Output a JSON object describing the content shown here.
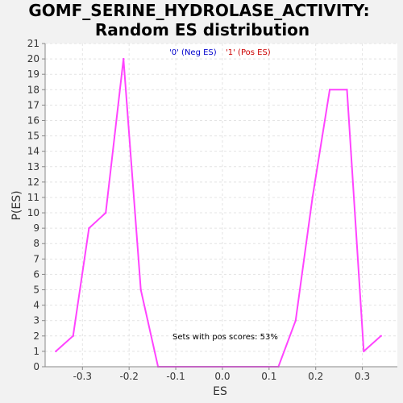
{
  "chart_data": {
    "type": "line",
    "title_line1": "GOMF_SERINE_HYDROLASE_ACTIVITY:",
    "title_line2": "Random ES distribution",
    "xlabel": "ES",
    "ylabel": "P(ES)",
    "xlim": [
      -0.38,
      0.375
    ],
    "ylim": [
      0,
      21
    ],
    "x_ticks": [
      -0.3,
      -0.2,
      -0.1,
      0.0,
      0.1,
      0.2,
      0.3
    ],
    "x_tick_labels": [
      "-0.3",
      "-0.2",
      "-0.1",
      "0.0",
      "0.1",
      "0.2",
      "0.3"
    ],
    "y_ticks": [
      0,
      1,
      2,
      3,
      4,
      5,
      6,
      7,
      8,
      9,
      10,
      11,
      12,
      13,
      14,
      15,
      16,
      17,
      18,
      19,
      20,
      21
    ],
    "y_tick_labels": [
      "0",
      "1",
      "2",
      "3",
      "4",
      "5",
      "6",
      "7",
      "8",
      "9",
      "10",
      "11",
      "12",
      "13",
      "14",
      "15",
      "16",
      "17",
      "18",
      "19",
      "20",
      "21"
    ],
    "grid": true,
    "legend_position": "top-center",
    "series": [
      {
        "name": "'0' (Neg ES)",
        "color": "#0000cc",
        "x": [],
        "y": []
      },
      {
        "name": "'1' (Pos ES)",
        "color": "#cc0000",
        "x": [],
        "y": []
      },
      {
        "color": "#ff44ff",
        "x": [
          -0.357,
          -0.32,
          -0.286,
          -0.25,
          -0.212,
          -0.175,
          -0.138,
          0.12,
          0.157,
          0.193,
          0.23,
          0.267,
          0.303,
          0.34
        ],
        "y": [
          1,
          2,
          9,
          10,
          20,
          5,
          0,
          0,
          3,
          11,
          18,
          18,
          1,
          2
        ]
      }
    ],
    "annotation": "Sets with pos scores: 53%"
  }
}
